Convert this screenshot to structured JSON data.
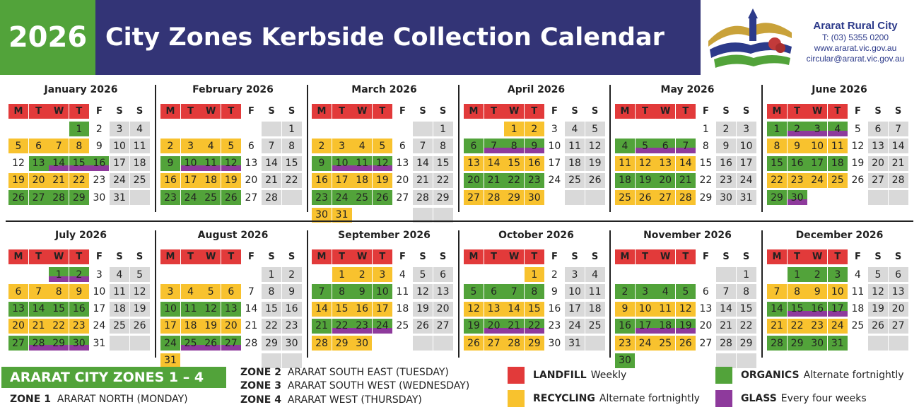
{
  "header": {
    "year": "2026",
    "title": "City Zones Kerbside Collection Calendar",
    "council_name": "Ararat Rural City",
    "phone": "T: (03) 5355 0200",
    "website": "www.ararat.vic.gov.au",
    "email": "circular@ararat.vic.gov.au"
  },
  "weekday_labels": [
    "M",
    "T",
    "W",
    "T",
    "F",
    "S",
    "S"
  ],
  "colors": {
    "landfill": "#e23a3a",
    "recycling": "#f8c22e",
    "organics": "#52a33a",
    "glass": "#8e3a9c",
    "weekend": "#d9d9d9",
    "header_green": "#52a33a",
    "header_navy": "#333476"
  },
  "months": [
    {
      "name": "January 2026",
      "days": 31,
      "start": 3,
      "r": [
        5,
        6,
        7,
        8,
        19,
        20,
        21,
        22
      ],
      "o": [
        1,
        13,
        14,
        15,
        16,
        26,
        27,
        28,
        29
      ],
      "g": [
        14,
        15,
        16
      ]
    },
    {
      "name": "February 2026",
      "days": 28,
      "start": 6,
      "r": [
        2,
        3,
        4,
        5,
        16,
        17,
        18,
        19
      ],
      "o": [
        9,
        10,
        11,
        12,
        23,
        24,
        25,
        26
      ],
      "g": [
        10,
        11,
        12
      ]
    },
    {
      "name": "March 2026",
      "days": 31,
      "start": 6,
      "r": [
        2,
        3,
        4,
        5,
        16,
        17,
        18,
        19,
        30,
        31
      ],
      "o": [
        9,
        10,
        11,
        12,
        23,
        24,
        25,
        26
      ],
      "g": [
        10,
        11,
        12
      ]
    },
    {
      "name": "April 2026",
      "days": 30,
      "start": 2,
      "r": [
        1,
        2,
        13,
        14,
        15,
        16,
        27,
        28,
        29,
        30
      ],
      "o": [
        6,
        7,
        8,
        9,
        20,
        21,
        22,
        23
      ],
      "g": [
        7,
        8,
        9
      ]
    },
    {
      "name": "May 2026",
      "days": 31,
      "start": 4,
      "r": [
        11,
        12,
        13,
        14,
        25,
        26,
        27,
        28
      ],
      "o": [
        4,
        5,
        6,
        7,
        18,
        19,
        20,
        21
      ],
      "g": [
        5,
        6,
        7
      ]
    },
    {
      "name": "June 2026",
      "days": 30,
      "start": 0,
      "r": [
        8,
        9,
        10,
        11,
        22,
        23,
        24,
        25
      ],
      "o": [
        1,
        2,
        3,
        4,
        15,
        16,
        17,
        18,
        29,
        30
      ],
      "g": [
        2,
        3,
        4,
        30
      ]
    },
    {
      "name": "July 2026",
      "days": 31,
      "start": 2,
      "r": [
        6,
        7,
        8,
        9,
        20,
        21,
        22,
        23
      ],
      "o": [
        1,
        2,
        13,
        14,
        15,
        16,
        27,
        28,
        29,
        30
      ],
      "g": [
        1,
        2,
        28,
        29,
        30
      ]
    },
    {
      "name": "August 2026",
      "days": 31,
      "start": 5,
      "r": [
        3,
        4,
        5,
        6,
        17,
        18,
        19,
        20,
        31
      ],
      "o": [
        10,
        11,
        12,
        13,
        24,
        25,
        26,
        27
      ],
      "g": [
        25,
        26,
        27
      ]
    },
    {
      "name": "September 2026",
      "days": 30,
      "start": 1,
      "r": [
        1,
        2,
        3,
        14,
        15,
        16,
        17,
        28,
        29,
        30
      ],
      "o": [
        7,
        8,
        9,
        10,
        21,
        22,
        23,
        24
      ],
      "g": [
        22,
        23,
        24
      ]
    },
    {
      "name": "October 2026",
      "days": 31,
      "start": 3,
      "r": [
        1,
        12,
        13,
        14,
        15,
        26,
        27,
        28,
        29
      ],
      "o": [
        5,
        6,
        7,
        8,
        19,
        20,
        21,
        22
      ],
      "g": [
        20,
        21,
        22
      ]
    },
    {
      "name": "November 2026",
      "days": 30,
      "start": 6,
      "r": [
        9,
        10,
        11,
        12,
        23,
        24,
        25,
        26
      ],
      "o": [
        2,
        3,
        4,
        5,
        16,
        17,
        18,
        19,
        30
      ],
      "g": [
        17,
        18,
        19
      ]
    },
    {
      "name": "December 2026",
      "days": 31,
      "start": 1,
      "r": [
        7,
        8,
        9,
        10,
        21,
        22,
        23,
        24
      ],
      "o": [
        1,
        2,
        3,
        14,
        15,
        16,
        17,
        28,
        29,
        30,
        31
      ],
      "g": [
        15,
        16,
        17
      ]
    }
  ],
  "footer": {
    "zones_title": "ARARAT CITY ZONES 1 – 4",
    "zone1_label": "ZONE 1",
    "zone1_text": "ARARAT NORTH (MONDAY)",
    "zone2_label": "ZONE 2",
    "zone2_text": "ARARAT SOUTH EAST (TUESDAY)",
    "zone3_label": "ZONE 3",
    "zone3_text": "ARARAT SOUTH WEST (WEDNESDAY)",
    "zone4_label": "ZONE 4",
    "zone4_text": "ARARAT WEST (THURSDAY)"
  },
  "legend": {
    "landfill_name": "LANDFILL",
    "landfill_freq": "Weekly",
    "recycling_name": "RECYCLING",
    "recycling_freq": "Alternate fortnightly",
    "organics_name": "ORGANICS",
    "organics_freq": "Alternate fortnightly",
    "glass_name": "GLASS",
    "glass_freq": "Every four weeks"
  }
}
